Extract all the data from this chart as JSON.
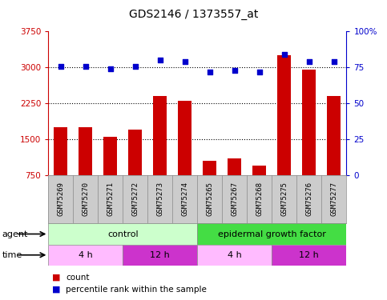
{
  "title": "GDS2146 / 1373557_at",
  "samples": [
    "GSM75269",
    "GSM75270",
    "GSM75271",
    "GSM75272",
    "GSM75273",
    "GSM75274",
    "GSM75265",
    "GSM75267",
    "GSM75268",
    "GSM75275",
    "GSM75276",
    "GSM75277"
  ],
  "counts": [
    1750,
    1750,
    1550,
    1700,
    2400,
    2300,
    1050,
    1100,
    950,
    3250,
    2950,
    2400
  ],
  "percentiles": [
    76,
    76,
    74,
    76,
    80,
    79,
    72,
    73,
    72,
    84,
    79,
    79
  ],
  "ylim_left": [
    750,
    3750
  ],
  "ylim_right": [
    0,
    100
  ],
  "yticks_left": [
    750,
    1500,
    2250,
    3000,
    3750
  ],
  "yticks_right": [
    0,
    25,
    50,
    75,
    100
  ],
  "bar_color": "#cc0000",
  "dot_color": "#0000cc",
  "agent_labels": [
    {
      "label": "control",
      "start": 0,
      "end": 6,
      "color": "#ccffcc",
      "border": "#888888"
    },
    {
      "label": "epidermal growth factor",
      "start": 6,
      "end": 12,
      "color": "#44dd44",
      "border": "#888888"
    }
  ],
  "time_labels": [
    {
      "label": "4 h",
      "start": 0,
      "end": 3,
      "color": "#ffbbff",
      "border": "#888888"
    },
    {
      "label": "12 h",
      "start": 3,
      "end": 6,
      "color": "#cc33cc",
      "border": "#888888"
    },
    {
      "label": "4 h",
      "start": 6,
      "end": 9,
      "color": "#ffbbff",
      "border": "#888888"
    },
    {
      "label": "12 h",
      "start": 9,
      "end": 12,
      "color": "#cc33cc",
      "border": "#888888"
    }
  ],
  "legend_count_color": "#cc0000",
  "legend_dot_color": "#0000cc",
  "bg_color": "#ffffff",
  "plot_bg_color": "#ffffff",
  "sample_label_bg": "#cccccc",
  "axis_label_color_left": "#cc0000",
  "axis_label_color_right": "#0000cc",
  "title_fontsize": 10,
  "tick_fontsize": 7.5,
  "sample_label_fontsize": 6.5,
  "legend_fontsize": 7.5,
  "row_label_fontsize": 8,
  "annot_fontsize": 8
}
